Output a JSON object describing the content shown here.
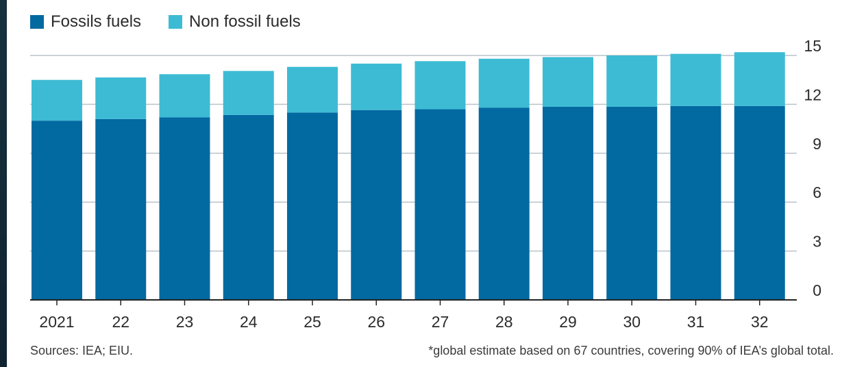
{
  "colors": {
    "fossil": "#0369a1",
    "non_fossil": "#3dbbd4",
    "grid": "#b9c3c9",
    "axis": "#222222"
  },
  "legend": {
    "fossil_label": "Fossils fuels",
    "non_fossil_label": "Non fossil fuels"
  },
  "footer": {
    "sources": "Sources: IEA; EIU.",
    "note": "*global estimate based on 67 countries, covering 90% of IEA’s global total."
  },
  "chart_data": {
    "type": "bar",
    "stacked": true,
    "categories": [
      "2021",
      "22",
      "23",
      "24",
      "25",
      "26",
      "27",
      "28",
      "29",
      "30",
      "31",
      "32"
    ],
    "series": [
      {
        "name": "Fossils fuels",
        "values": [
          11.0,
          11.1,
          11.2,
          11.35,
          11.5,
          11.65,
          11.7,
          11.8,
          11.85,
          11.85,
          11.9,
          11.9
        ]
      },
      {
        "name": "Non fossil fuels",
        "values": [
          2.5,
          2.55,
          2.65,
          2.7,
          2.8,
          2.85,
          2.95,
          3.0,
          3.05,
          3.15,
          3.2,
          3.3
        ]
      }
    ],
    "ylim": [
      0,
      15
    ],
    "yticks": [
      0,
      3,
      6,
      9,
      12,
      15
    ],
    "grid": true,
    "y_axis_side": "right",
    "legend_position": "top-left"
  }
}
